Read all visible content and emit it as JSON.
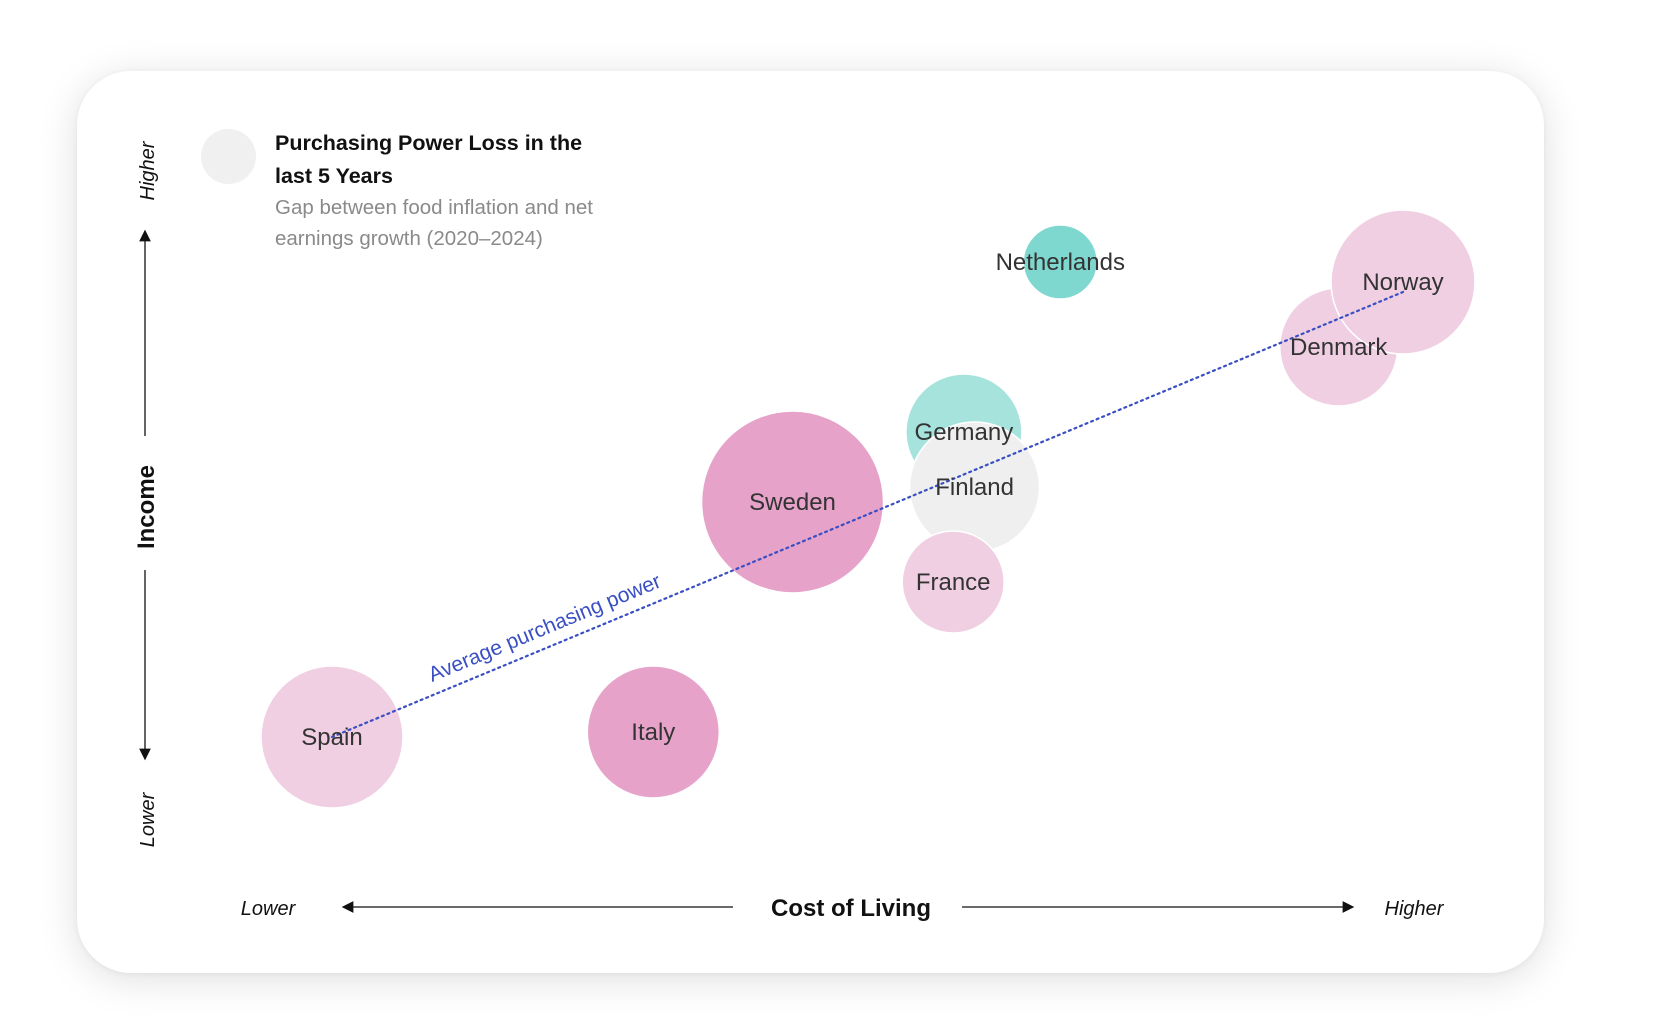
{
  "legend": {
    "title": "Purchasing Power Loss in the last 5 Years",
    "subtitle": "Gap between food inflation and net earnings growth (2020–2024)",
    "swatch_color": "#f0f0f0"
  },
  "chart_data": {
    "type": "scatter",
    "subtype": "bubble",
    "xlabel": "Cost of Living",
    "ylabel": "Income",
    "x_axis": {
      "low_label": "Lower",
      "high_label": "Higher"
    },
    "y_axis": {
      "low_label": "Lower",
      "high_label": "Higher"
    },
    "xlim": [
      0,
      100
    ],
    "ylim": [
      0,
      100
    ],
    "grid": false,
    "trendline": {
      "label": "Average purchasing power",
      "x": [
        0,
        100
      ],
      "y": [
        0,
        89
      ],
      "color": "#3a4fc4",
      "style": "dotted"
    },
    "points": [
      {
        "name": "Spain",
        "x": 0,
        "y": 0,
        "size": 71,
        "color": "#f0cfe3"
      },
      {
        "name": "Italy",
        "x": 30,
        "y": 1,
        "size": 66,
        "color": "#e6a2c9"
      },
      {
        "name": "Sweden",
        "x": 43,
        "y": 47,
        "size": 91,
        "color": "#e6a2c9"
      },
      {
        "name": "Germany",
        "x": 59,
        "y": 61,
        "size": 58,
        "color": "#a6e3dc"
      },
      {
        "name": "Finland",
        "x": 60,
        "y": 50,
        "size": 65,
        "color": "#efefef"
      },
      {
        "name": "France",
        "x": 58,
        "y": 31,
        "size": 51,
        "color": "#f0cfe3"
      },
      {
        "name": "Netherlands",
        "x": 68,
        "y": 95,
        "size": 37,
        "color": "#7fd8cf"
      },
      {
        "name": "Denmark",
        "x": 94,
        "y": 78,
        "size": 59,
        "color": "#f0cfe3"
      },
      {
        "name": "Norway",
        "x": 100,
        "y": 91,
        "size": 72,
        "color": "#f0cfe3"
      }
    ]
  }
}
